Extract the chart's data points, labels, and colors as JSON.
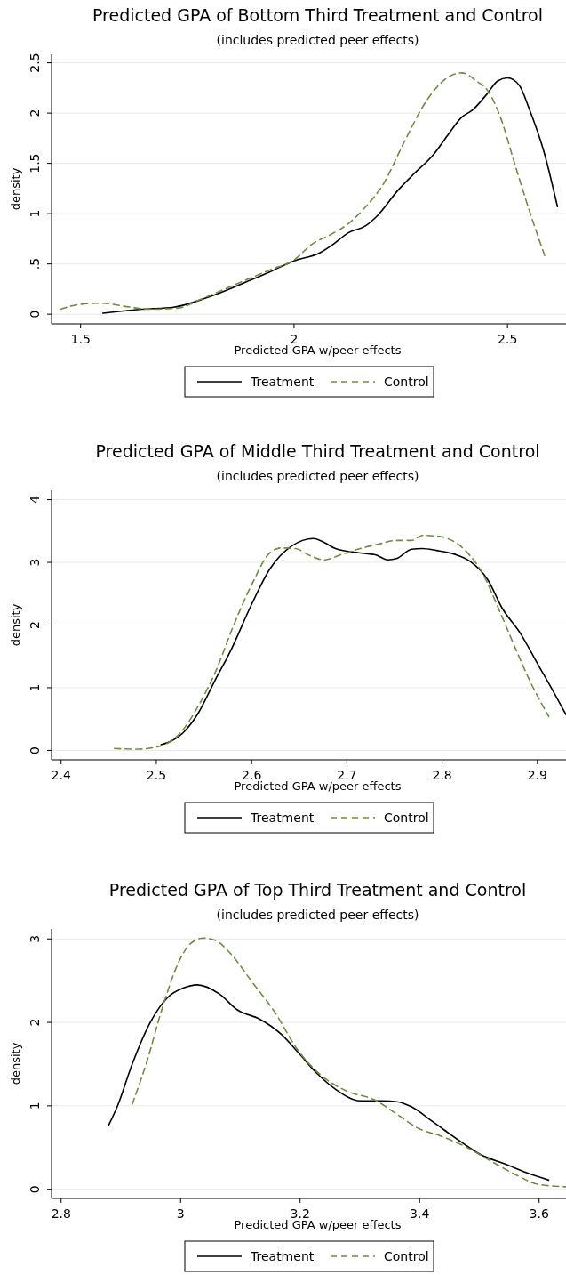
{
  "chart_data": [
    {
      "type": "line",
      "title": "Predicted GPA of Bottom Third Treatment and Control",
      "subtitle": "(includes predicted peer effects)",
      "xlabel": "Predicted GPA w/peer effects",
      "ylabel": "density",
      "xlim": [
        1.432,
        2.637
      ],
      "ylim": [
        -0.096,
        2.585
      ],
      "xticks": [
        1.5,
        2,
        2.5
      ],
      "yticks": [
        0,
        {
          "value": 0.5,
          "label": ".5"
        },
        1,
        1.5,
        2,
        2.5
      ],
      "grid": "y",
      "legend": "bottom",
      "series": [
        {
          "name": "Treatment",
          "color": "#000000",
          "line_style": "solid",
          "x": [
            1.552,
            1.643,
            1.718,
            1.793,
            1.843,
            1.893,
            1.943,
            2.0,
            2.06,
            2.093,
            2.127,
            2.168,
            2.193,
            2.243,
            2.277,
            2.327,
            2.36,
            2.393,
            2.418,
            2.452,
            2.477,
            2.5,
            2.527,
            2.552,
            2.585,
            2.617
          ],
          "values": [
            0.01,
            0.05,
            0.07,
            0.16,
            0.24,
            0.33,
            0.42,
            0.53,
            0.61,
            0.7,
            0.81,
            0.88,
            0.97,
            1.23,
            1.38,
            1.59,
            1.78,
            1.96,
            2.03,
            2.19,
            2.32,
            2.35,
            2.28,
            2.03,
            1.62,
            1.07
          ]
        },
        {
          "name": "Control",
          "color": "#6b8e3e",
          "line_style": "dashed",
          "x": [
            1.453,
            1.502,
            1.552,
            1.602,
            1.66,
            1.727,
            1.777,
            1.843,
            1.943,
            2.0,
            2.043,
            2.085,
            2.127,
            2.168,
            2.21,
            2.252,
            2.31,
            2.352,
            2.393,
            2.427,
            2.456,
            2.485,
            2.518,
            2.552,
            2.589
          ],
          "values": [
            0.05,
            0.1,
            0.11,
            0.08,
            0.05,
            0.06,
            0.14,
            0.26,
            0.44,
            0.54,
            0.7,
            0.79,
            0.9,
            1.07,
            1.3,
            1.66,
            2.12,
            2.33,
            2.4,
            2.32,
            2.21,
            1.94,
            1.48,
            1.02,
            0.56
          ]
        }
      ]
    },
    {
      "type": "line",
      "title": "Predicted GPA of Middle Third Treatment and Control",
      "subtitle": "(includes predicted peer effects)",
      "xlabel": "Predicted GPA w/peer effects",
      "ylabel": "density",
      "xlim": [
        2.39,
        2.93
      ],
      "ylim": [
        -0.15,
        4.15
      ],
      "xticks": [
        2.4,
        2.5,
        2.6,
        2.7,
        2.8,
        2.9
      ],
      "yticks": [
        0,
        1,
        2,
        3,
        4
      ],
      "grid": "y",
      "legend": "bottom",
      "series": [
        {
          "name": "Treatment",
          "color": "#000000",
          "line_style": "solid",
          "x": [
            2.505,
            2.528,
            2.543,
            2.562,
            2.578,
            2.6,
            2.619,
            2.642,
            2.665,
            2.676,
            2.688,
            2.714,
            2.73,
            2.743,
            2.752,
            2.768,
            2.779,
            2.794,
            2.813,
            2.829,
            2.848,
            2.863,
            2.882,
            2.901,
            2.916,
            2.93
          ],
          "values": [
            0.09,
            0.28,
            0.57,
            1.13,
            1.59,
            2.33,
            2.89,
            3.26,
            3.38,
            3.32,
            3.22,
            3.15,
            3.12,
            3.04,
            3.06,
            3.21,
            3.22,
            3.19,
            3.13,
            3.02,
            2.72,
            2.27,
            1.87,
            1.36,
            0.96,
            0.57
          ]
        },
        {
          "name": "Control",
          "color": "#6b8e3e",
          "line_style": "dashed",
          "x": [
            2.456,
            2.479,
            2.502,
            2.524,
            2.547,
            2.562,
            2.581,
            2.6,
            2.619,
            2.631,
            2.646,
            2.661,
            2.676,
            2.695,
            2.714,
            2.733,
            2.752,
            2.768,
            2.779,
            2.794,
            2.806,
            2.825,
            2.844,
            2.859,
            2.878,
            2.893,
            2.912
          ],
          "values": [
            0.03,
            0.02,
            0.06,
            0.26,
            0.79,
            1.25,
            1.99,
            2.64,
            3.15,
            3.23,
            3.22,
            3.11,
            3.04,
            3.13,
            3.22,
            3.29,
            3.35,
            3.35,
            3.43,
            3.42,
            3.38,
            3.18,
            2.78,
            2.27,
            1.59,
            1.08,
            0.54
          ]
        }
      ]
    },
    {
      "type": "line",
      "title": "Predicted GPA of Top Third Treatment and Control",
      "subtitle": "(includes predicted peer effects)",
      "xlabel": "Predicted GPA w/peer effects",
      "ylabel": "density",
      "xlim": [
        2.784,
        3.645
      ],
      "ylim": [
        -0.11,
        3.12
      ],
      "xticks": [
        2.8,
        3,
        3.2,
        3.4,
        3.6
      ],
      "yticks": [
        0,
        1,
        2,
        3
      ],
      "grid": "y",
      "legend": "bottom",
      "series": [
        {
          "name": "Treatment",
          "color": "#000000",
          "line_style": "solid",
          "x": [
            2.879,
            2.895,
            2.919,
            2.95,
            2.98,
            3.004,
            3.028,
            3.065,
            3.095,
            3.132,
            3.168,
            3.198,
            3.228,
            3.259,
            3.301,
            3.338,
            3.362,
            3.386,
            3.422,
            3.471,
            3.501,
            3.544,
            3.586,
            3.616
          ],
          "values": [
            0.76,
            1.01,
            1.5,
            2.01,
            2.31,
            2.41,
            2.45,
            2.34,
            2.15,
            2.04,
            1.86,
            1.63,
            1.39,
            1.2,
            1.06,
            1.06,
            1.05,
            0.99,
            0.81,
            0.56,
            0.42,
            0.3,
            0.18,
            0.11
          ]
        },
        {
          "name": "Control",
          "color": "#6b8e3e",
          "line_style": "dashed",
          "x": [
            2.919,
            2.944,
            2.968,
            2.998,
            3.016,
            3.038,
            3.059,
            3.083,
            3.119,
            3.156,
            3.198,
            3.228,
            3.277,
            3.325,
            3.362,
            3.398,
            3.435,
            3.477,
            3.519,
            3.562,
            3.598,
            3.645
          ],
          "values": [
            1.02,
            1.54,
            2.14,
            2.74,
            2.94,
            3.01,
            2.98,
            2.83,
            2.49,
            2.14,
            1.65,
            1.41,
            1.18,
            1.07,
            0.9,
            0.73,
            0.64,
            0.51,
            0.34,
            0.17,
            0.06,
            0.03
          ]
        }
      ]
    }
  ]
}
